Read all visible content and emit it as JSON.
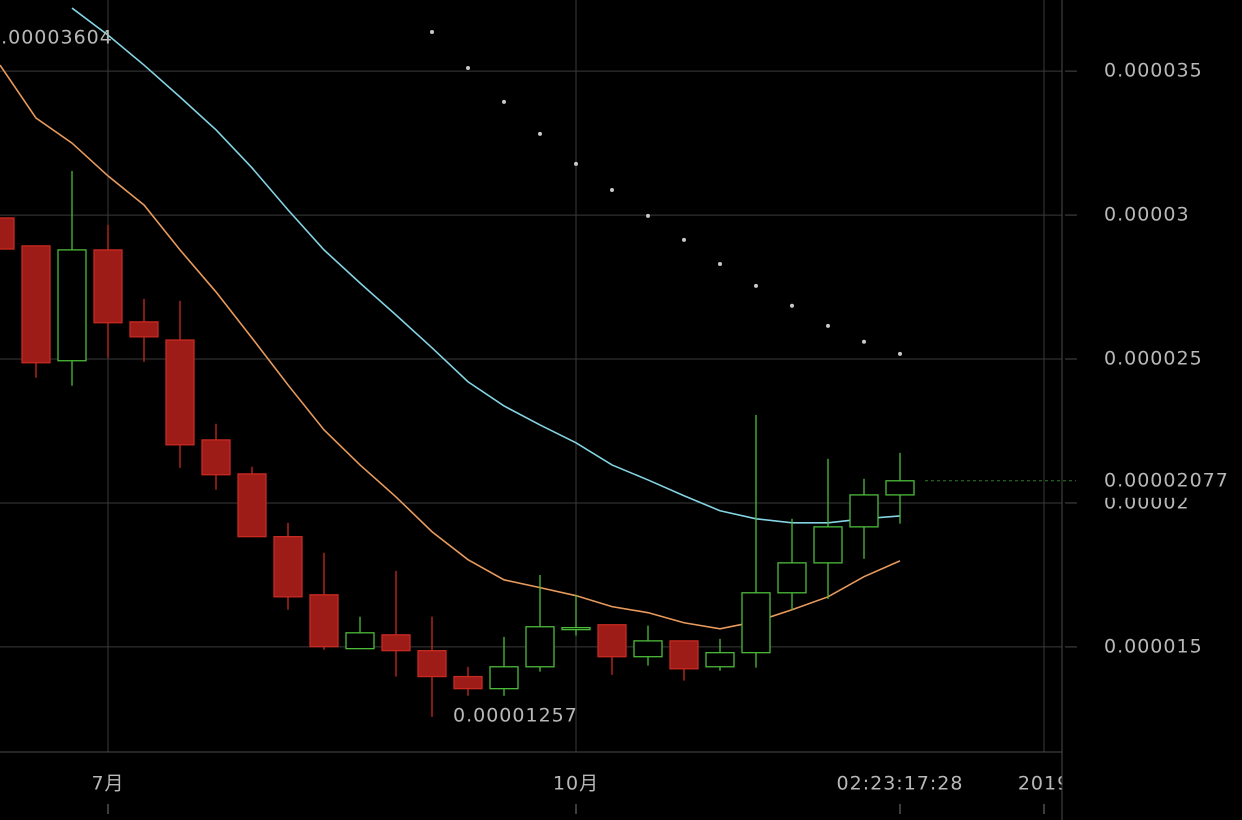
{
  "chart_data": {
    "type": "candlestick",
    "x": [
      0,
      1,
      2,
      3,
      4,
      5,
      6,
      7,
      8,
      9,
      10,
      11,
      12,
      13,
      14,
      15,
      16,
      17,
      18,
      19,
      20,
      21,
      22,
      23,
      24,
      25
    ],
    "open": [
      2.99e-05,
      2.893e-05,
      2.494e-05,
      2.879e-05,
      2.629e-05,
      2.566e-05,
      2.219e-05,
      2.101e-05,
      1.883e-05,
      1.681e-05,
      1.494e-05,
      1.542e-05,
      1.487e-05,
      1.397e-05,
      1.355e-05,
      1.431e-05,
      1.566e-05,
      1.577e-05,
      1.466e-05,
      1.521e-05,
      1.431e-05,
      1.48e-05,
      1.688e-05,
      1.792e-05,
      1.917e-05,
      2.028e-05
    ],
    "high": [
      2.99e-05,
      2.893e-05,
      3.153e-05,
      2.966e-05,
      2.709e-05,
      2.702e-05,
      2.275e-05,
      2.126e-05,
      1.931e-05,
      1.827e-05,
      1.605e-05,
      1.764e-05,
      1.605e-05,
      1.431e-05,
      1.535e-05,
      1.75e-05,
      1.681e-05,
      1.577e-05,
      1.574e-05,
      1.521e-05,
      1.528e-05,
      2.306e-05,
      1.945e-05,
      2.153e-05,
      2.084e-05,
      2.174e-05
    ],
    "low": [
      2.882e-05,
      2.435e-05,
      2.407e-05,
      2.504e-05,
      2.49e-05,
      2.122e-05,
      2.046e-05,
      1.883e-05,
      1.629e-05,
      1.49e-05,
      1.494e-05,
      1.397e-05,
      1.257e-05,
      1.33e-05,
      1.33e-05,
      1.414e-05,
      1.539e-05,
      1.403e-05,
      1.435e-05,
      1.383e-05,
      1.417e-05,
      1.428e-05,
      1.629e-05,
      1.667e-05,
      1.806e-05,
      1.928e-05
    ],
    "close": [
      2.882e-05,
      2.487e-05,
      2.879e-05,
      2.626e-05,
      2.577e-05,
      2.202e-05,
      2.098e-05,
      1.883e-05,
      1.674e-05,
      1.501e-05,
      1.549e-05,
      1.487e-05,
      1.397e-05,
      1.355e-05,
      1.431e-05,
      1.57e-05,
      1.567e-05,
      1.466e-05,
      1.521e-05,
      1.424e-05,
      1.48e-05,
      1.688e-05,
      1.792e-05,
      1.917e-05,
      2.028e-05,
      2.077e-05
    ],
    "up_color": "#4cbb3a",
    "down_color": "#9e1c17",
    "lines": [
      {
        "color": "#84d4e4",
        "values": [
          null,
          null,
          3.719e-05,
          3.625e-05,
          3.521e-05,
          3.41e-05,
          3.296e-05,
          3.164e-05,
          3.018e-05,
          2.879e-05,
          2.764e-05,
          2.653e-05,
          2.539e-05,
          2.421e-05,
          2.337e-05,
          2.271e-05,
          2.209e-05,
          2.132e-05,
          2.08e-05,
          2.025e-05,
          1.973e-05,
          1.945e-05,
          1.931e-05,
          1.931e-05,
          1.945e-05,
          1.955e-05
        ]
      },
      {
        "color": "#e89a5c",
        "values": [
          3.521e-05,
          3.337e-05,
          3.25e-05,
          3.136e-05,
          3.035e-05,
          2.879e-05,
          2.733e-05,
          2.573e-05,
          2.41e-05,
          2.254e-05,
          2.132e-05,
          2.021e-05,
          1.9e-05,
          1.803e-05,
          1.733e-05,
          1.706e-05,
          1.678e-05,
          1.64e-05,
          1.619e-05,
          1.584e-05,
          1.563e-05,
          1.588e-05,
          1.629e-05,
          1.674e-05,
          1.744e-05,
          1.799e-05
        ]
      }
    ],
    "sar": {
      "color": "#c8c8c8",
      "values": [
        null,
        null,
        null,
        null,
        null,
        null,
        null,
        null,
        null,
        null,
        null,
        null,
        3.636e-05,
        3.511e-05,
        3.393e-05,
        3.282e-05,
        3.178e-05,
        3.087e-05,
        2.997e-05,
        2.914e-05,
        2.83e-05,
        2.754e-05,
        2.685e-05,
        2.615e-05,
        2.56e-05,
        2.518e-05
      ]
    },
    "max_price": 3.604e-05,
    "xlim": [
      0,
      29.5
    ],
    "xticks": [
      {
        "value": 3,
        "label": "7月"
      },
      {
        "value": 16,
        "label": "10月"
      },
      {
        "value": 29,
        "label": "2019"
      }
    ],
    "countdown": {
      "x": 25,
      "label": "02:23:17:28"
    },
    "ylim": [
      1.135e-05,
      3.747e-05
    ],
    "yticks": [
      1.5e-05,
      2e-05,
      2.5e-05,
      3e-05,
      3.5e-05
    ],
    "grid": true
  }
}
